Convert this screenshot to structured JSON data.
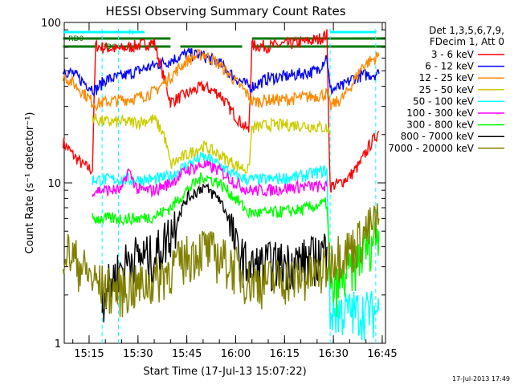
{
  "title": "HESSI Observing Summary Count Rates",
  "footer_timestamp": "17-Jul-2013 17:49",
  "legend_header": [
    "Det 1,3,5,6,7,9,",
    "FDecim 1, Att 0"
  ],
  "flags": [
    {
      "label": "N",
      "color": "#00ffff"
    },
    {
      "label": "RD0",
      "color": "#007700"
    },
    {
      "label": "RD6",
      "color": "#007700"
    }
  ],
  "chart_data": {
    "type": "line",
    "title": "HESSI Observing Summary Count Rates",
    "xlabel": "Start Time (17-Jul-13 15:07:22)",
    "ylabel": "Count Rate (s⁻¹ detector⁻¹)",
    "y_scale": "log",
    "ylim": [
      1,
      100
    ],
    "xlim": [
      "15:07:22",
      "16:46:00"
    ],
    "x_ticks": [
      "15:15",
      "15:30",
      "15:45",
      "16:00",
      "16:15",
      "16:30",
      "16:45"
    ],
    "y_ticks": [
      "1",
      "10",
      "100"
    ],
    "legend_position": "right",
    "vertical_markers": [
      "15:19",
      "15:24",
      "16:29",
      "16:43"
    ],
    "series": [
      {
        "name": "3 - 6 keV",
        "color": "#ff0000",
        "x": [
          "15:07",
          "15:10",
          "15:13",
          "15:16",
          "15:17",
          "15:19",
          "15:24",
          "15:30",
          "15:35",
          "15:40",
          "15:45",
          "15:50",
          "15:55",
          "16:00",
          "16:04",
          "16:05",
          "16:10",
          "16:15",
          "16:20",
          "16:25",
          "16:28",
          "16:29",
          "16:32",
          "16:35",
          "16:38",
          "16:41",
          "16:44"
        ],
        "y": [
          18,
          15,
          13,
          12,
          72,
          70,
          68,
          72,
          75,
          32,
          36,
          40,
          36,
          26,
          21,
          72,
          71,
          73,
          75,
          78,
          84,
          9.5,
          10,
          11,
          13,
          17,
          21
        ]
      },
      {
        "name": "6 - 12 keV",
        "color": "#0000ff",
        "x": [
          "15:07",
          "15:10",
          "15:13",
          "15:16",
          "15:17",
          "15:20",
          "15:25",
          "15:30",
          "15:35",
          "15:40",
          "15:45",
          "15:50",
          "15:55",
          "16:00",
          "16:04",
          "16:05",
          "16:10",
          "16:15",
          "16:20",
          "16:25",
          "16:28",
          "16:29",
          "16:33",
          "16:36",
          "16:39",
          "16:44"
        ],
        "y": [
          51,
          48,
          43,
          39,
          38,
          44,
          46,
          50,
          54,
          58,
          64,
          62,
          56,
          45,
          40,
          40,
          45,
          46,
          48,
          50,
          62,
          38,
          40,
          45,
          47,
          48
        ]
      },
      {
        "name": "12 - 25 keV",
        "color": "#ff8800",
        "x": [
          "15:07",
          "15:10",
          "15:13",
          "15:16",
          "15:17",
          "15:20",
          "15:25",
          "15:30",
          "15:35",
          "15:40",
          "15:45",
          "15:50",
          "15:55",
          "16:00",
          "16:04",
          "16:05",
          "16:10",
          "16:15",
          "16:20",
          "16:25",
          "16:28",
          "16:29",
          "16:33",
          "16:36",
          "16:39",
          "16:44"
        ],
        "y": [
          47,
          42,
          37,
          32,
          31,
          32,
          33,
          34,
          37,
          46,
          58,
          64,
          55,
          43,
          35,
          32,
          33,
          33,
          34,
          35,
          36,
          30,
          34,
          42,
          54,
          62
        ]
      },
      {
        "name": "25 - 50 keV",
        "color": "#cccc00",
        "x": [
          "15:16",
          "15:17",
          "15:20",
          "15:25",
          "15:30",
          "15:35",
          "15:38",
          "15:40",
          "15:45",
          "15:50",
          "15:55",
          "16:00",
          "16:04",
          "16:05",
          "16:10",
          "16:20",
          "16:28",
          "16:29"
        ],
        "y": [
          26,
          25,
          24,
          24,
          24,
          25,
          20,
          13,
          15,
          17,
          15,
          13,
          12,
          22,
          23,
          23,
          22,
          20
        ]
      },
      {
        "name": "50 - 100 keV",
        "color": "#00ffff",
        "x": [
          "15:16",
          "15:20",
          "15:25",
          "15:30",
          "15:35",
          "15:40",
          "15:45",
          "15:50",
          "15:55",
          "16:00",
          "16:04",
          "16:05",
          "16:10",
          "16:20",
          "16:28",
          "16:29",
          "16:33",
          "16:36",
          "16:40",
          "16:44"
        ],
        "y": [
          10.5,
          10.5,
          10.5,
          10.5,
          10.5,
          11,
          13,
          14.5,
          13,
          11,
          10.5,
          10.5,
          10.5,
          11,
          12,
          1.6,
          1.6,
          1.6,
          1.6,
          1.6
        ]
      },
      {
        "name": "100 - 300 keV",
        "color": "#ff00ff",
        "x": [
          "15:16",
          "15:20",
          "15:25",
          "15:27",
          "15:30",
          "15:35",
          "15:40",
          "15:45",
          "15:50",
          "15:55",
          "16:00",
          "16:04",
          "16:05",
          "16:10",
          "16:20",
          "16:28"
        ],
        "y": [
          9,
          9,
          9,
          12,
          9,
          9,
          10,
          12,
          13,
          12,
          10,
          9,
          9,
          9,
          9.5,
          9.5
        ]
      },
      {
        "name": "300 - 800 keV",
        "color": "#00ff00",
        "x": [
          "15:16",
          "15:20",
          "15:25",
          "15:30",
          "15:35",
          "15:40",
          "15:45",
          "15:50",
          "15:55",
          "16:00",
          "16:04",
          "16:05",
          "16:10",
          "16:20",
          "16:28",
          "16:29",
          "16:33",
          "16:36",
          "16:40",
          "16:44"
        ],
        "y": [
          6,
          6,
          6,
          6,
          6.2,
          7,
          9,
          11,
          10,
          8,
          6.5,
          6.5,
          6.5,
          6.8,
          7.5,
          2,
          2.5,
          3,
          4,
          5
        ]
      },
      {
        "name": "800 - 7000 keV",
        "color": "#000000",
        "x": [
          "15:19",
          "15:22",
          "15:25",
          "15:28",
          "15:31",
          "15:35",
          "15:40",
          "15:45",
          "15:50",
          "15:55",
          "15:58",
          "16:00",
          "16:04",
          "16:05",
          "16:10",
          "16:15",
          "16:20",
          "16:25",
          "16:28"
        ],
        "y": [
          2,
          2.5,
          3,
          3.5,
          3.5,
          3.5,
          5,
          8,
          9.5,
          8,
          6,
          4,
          3,
          3,
          3.2,
          3.2,
          3.3,
          3.5,
          4
        ]
      },
      {
        "name": "7000 - 20000 keV",
        "color": "#808000",
        "x": [
          "15:07",
          "15:10",
          "15:13",
          "15:16",
          "15:19",
          "15:22",
          "15:25",
          "15:30",
          "15:35",
          "15:40",
          "15:45",
          "15:50",
          "15:55",
          "16:00",
          "16:04",
          "16:05",
          "16:10",
          "16:15",
          "16:20",
          "16:25",
          "16:28",
          "16:29",
          "16:33",
          "16:36",
          "16:40",
          "16:44"
        ],
        "y": [
          4,
          3.5,
          3,
          2.5,
          2.3,
          2.2,
          2.2,
          2.3,
          2.5,
          3,
          3.5,
          4,
          3.5,
          3,
          2.5,
          2.5,
          2.5,
          2.6,
          2.6,
          2.7,
          3,
          3.5,
          3.8,
          4,
          5,
          6
        ]
      }
    ]
  }
}
